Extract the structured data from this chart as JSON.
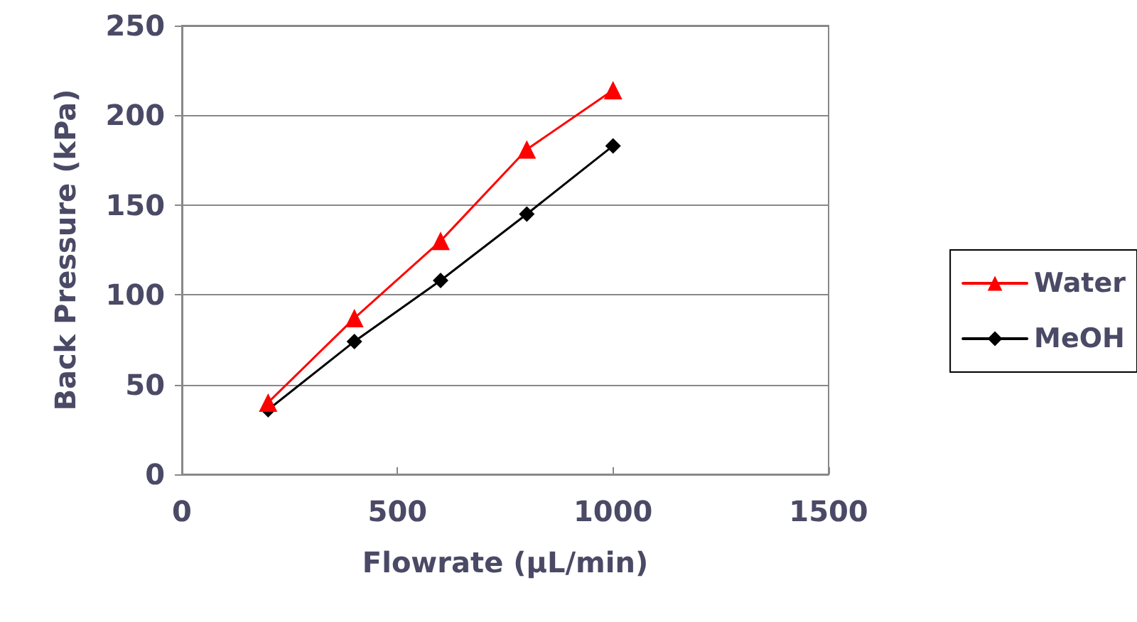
{
  "chart_data": {
    "type": "line",
    "xlabel": "Flowrate (µL/min)",
    "ylabel": "Back Pressure (kPa)",
    "x": [
      200,
      400,
      600,
      800,
      1000
    ],
    "series": [
      {
        "name": "Water",
        "color": "#ff0000",
        "marker": "triangle",
        "values": [
          40,
          87,
          130,
          181,
          214
        ]
      },
      {
        "name": "MeOH",
        "color": "#000000",
        "marker": "diamond",
        "values": [
          36,
          74,
          108,
          145,
          183
        ]
      }
    ],
    "xlim": [
      0,
      1500
    ],
    "xticks": [
      0,
      500,
      1000,
      1500
    ],
    "ylim": [
      0,
      250
    ],
    "yticks": [
      0,
      50,
      100,
      150,
      200,
      250
    ],
    "grid": "y",
    "legend": "right",
    "line_style": "solid"
  }
}
